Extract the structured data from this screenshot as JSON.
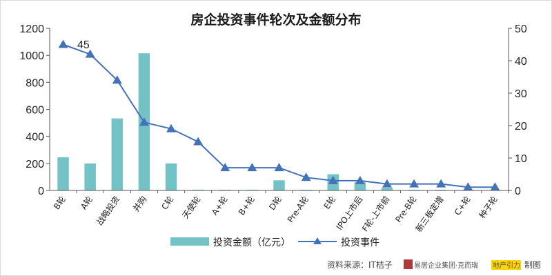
{
  "chart_data": {
    "type": "bar",
    "title": "房企投资事件轮次及金额分布",
    "categories": [
      "B轮",
      "A轮",
      "战略投资",
      "并购",
      "C轮",
      "天使轮",
      "A+轮",
      "B+轮",
      "D轮",
      "Pre-A轮",
      "E轮",
      "IPO上市后",
      "F轮-上市前",
      "Pre-B轮",
      "新三板定增",
      "C+轮",
      "种子轮"
    ],
    "series": [
      {
        "name": "投资金额（亿元）",
        "type": "bar",
        "axis": "left",
        "values": [
          245,
          200,
          533,
          1015,
          200,
          5,
          5,
          5,
          75,
          5,
          120,
          60,
          20,
          5,
          5,
          5,
          2
        ]
      },
      {
        "name": "投资事件",
        "type": "line",
        "axis": "right",
        "values": [
          45,
          42,
          34,
          21,
          19,
          15,
          7,
          7,
          7,
          4,
          3,
          3,
          2,
          2,
          2,
          1,
          1
        ]
      }
    ],
    "ylim_left": [
      0,
      1200
    ],
    "ylim_right": [
      0,
      50
    ],
    "yticks_left": [
      "0",
      "200",
      "400",
      "600",
      "800",
      "1000",
      "1200"
    ],
    "yticks_right": [
      "0",
      "10",
      "20",
      "30",
      "40",
      "50"
    ],
    "annotation": "45",
    "grid": false,
    "legend_position": "bottom",
    "colors": {
      "bar": "#72c2c6",
      "line": "#4472b8",
      "axis": "#555555"
    }
  },
  "footer": {
    "source": "资料来源：IT桔子",
    "logo_group": "易居企业集团·克而瑞",
    "logo_brand": "地产引力",
    "suffix": "制图"
  }
}
